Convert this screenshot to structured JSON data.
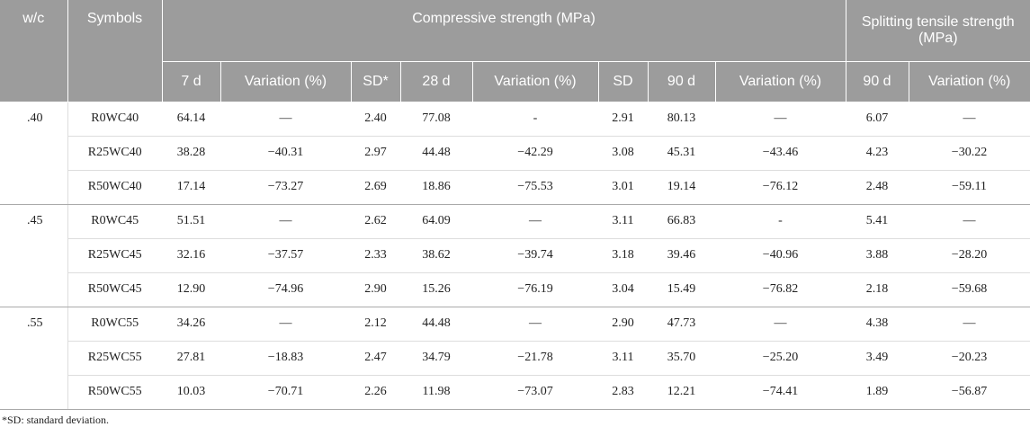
{
  "table": {
    "header1": [
      "w/c",
      "Symbols",
      "Compressive strength (MPa)",
      "Splitting tensile strength (MPa)"
    ],
    "header2": [
      "7 d",
      "Variation (%)",
      "SD*",
      "28 d",
      "Variation (%)",
      "SD",
      "90 d",
      "Variation (%)",
      "90 d",
      "Variation (%)"
    ],
    "groups": [
      {
        "wc": ".40",
        "rows": [
          [
            "R0WC40",
            "64.14",
            "—",
            "2.40",
            "77.08",
            "-",
            "2.91",
            "80.13",
            "—",
            "6.07",
            "—"
          ],
          [
            "R25WC40",
            "38.28",
            "−40.31",
            "2.97",
            "44.48",
            "−42.29",
            "3.08",
            "45.31",
            "−43.46",
            "4.23",
            "−30.22"
          ],
          [
            "R50WC40",
            "17.14",
            "−73.27",
            "2.69",
            "18.86",
            "−75.53",
            "3.01",
            "19.14",
            "−76.12",
            "2.48",
            "−59.11"
          ]
        ]
      },
      {
        "wc": ".45",
        "rows": [
          [
            "R0WC45",
            "51.51",
            "—",
            "2.62",
            "64.09",
            "—",
            "3.11",
            "66.83",
            "-",
            "5.41",
            "—"
          ],
          [
            "R25WC45",
            "32.16",
            "−37.57",
            "2.33",
            "38.62",
            "−39.74",
            "3.18",
            "39.46",
            "−40.96",
            "3.88",
            "−28.20"
          ],
          [
            "R50WC45",
            "12.90",
            "−74.96",
            "2.90",
            "15.26",
            "−76.19",
            "3.04",
            "15.49",
            "−76.82",
            "2.18",
            "−59.68"
          ]
        ]
      },
      {
        "wc": ".55",
        "rows": [
          [
            "R0WC55",
            "34.26",
            "—",
            "2.12",
            "44.48",
            "—",
            "2.90",
            "47.73",
            "—",
            "4.38",
            "—"
          ],
          [
            "R25WC55",
            "27.81",
            "−18.83",
            "2.47",
            "34.79",
            "−21.78",
            "3.11",
            "35.70",
            "−25.20",
            "3.49",
            "−20.23"
          ],
          [
            "R50WC55",
            "10.03",
            "−70.71",
            "2.26",
            "11.98",
            "−73.07",
            "2.83",
            "12.21",
            "−74.41",
            "1.89",
            "−56.87"
          ]
        ]
      }
    ],
    "footnote": "*SD: standard deviation."
  }
}
